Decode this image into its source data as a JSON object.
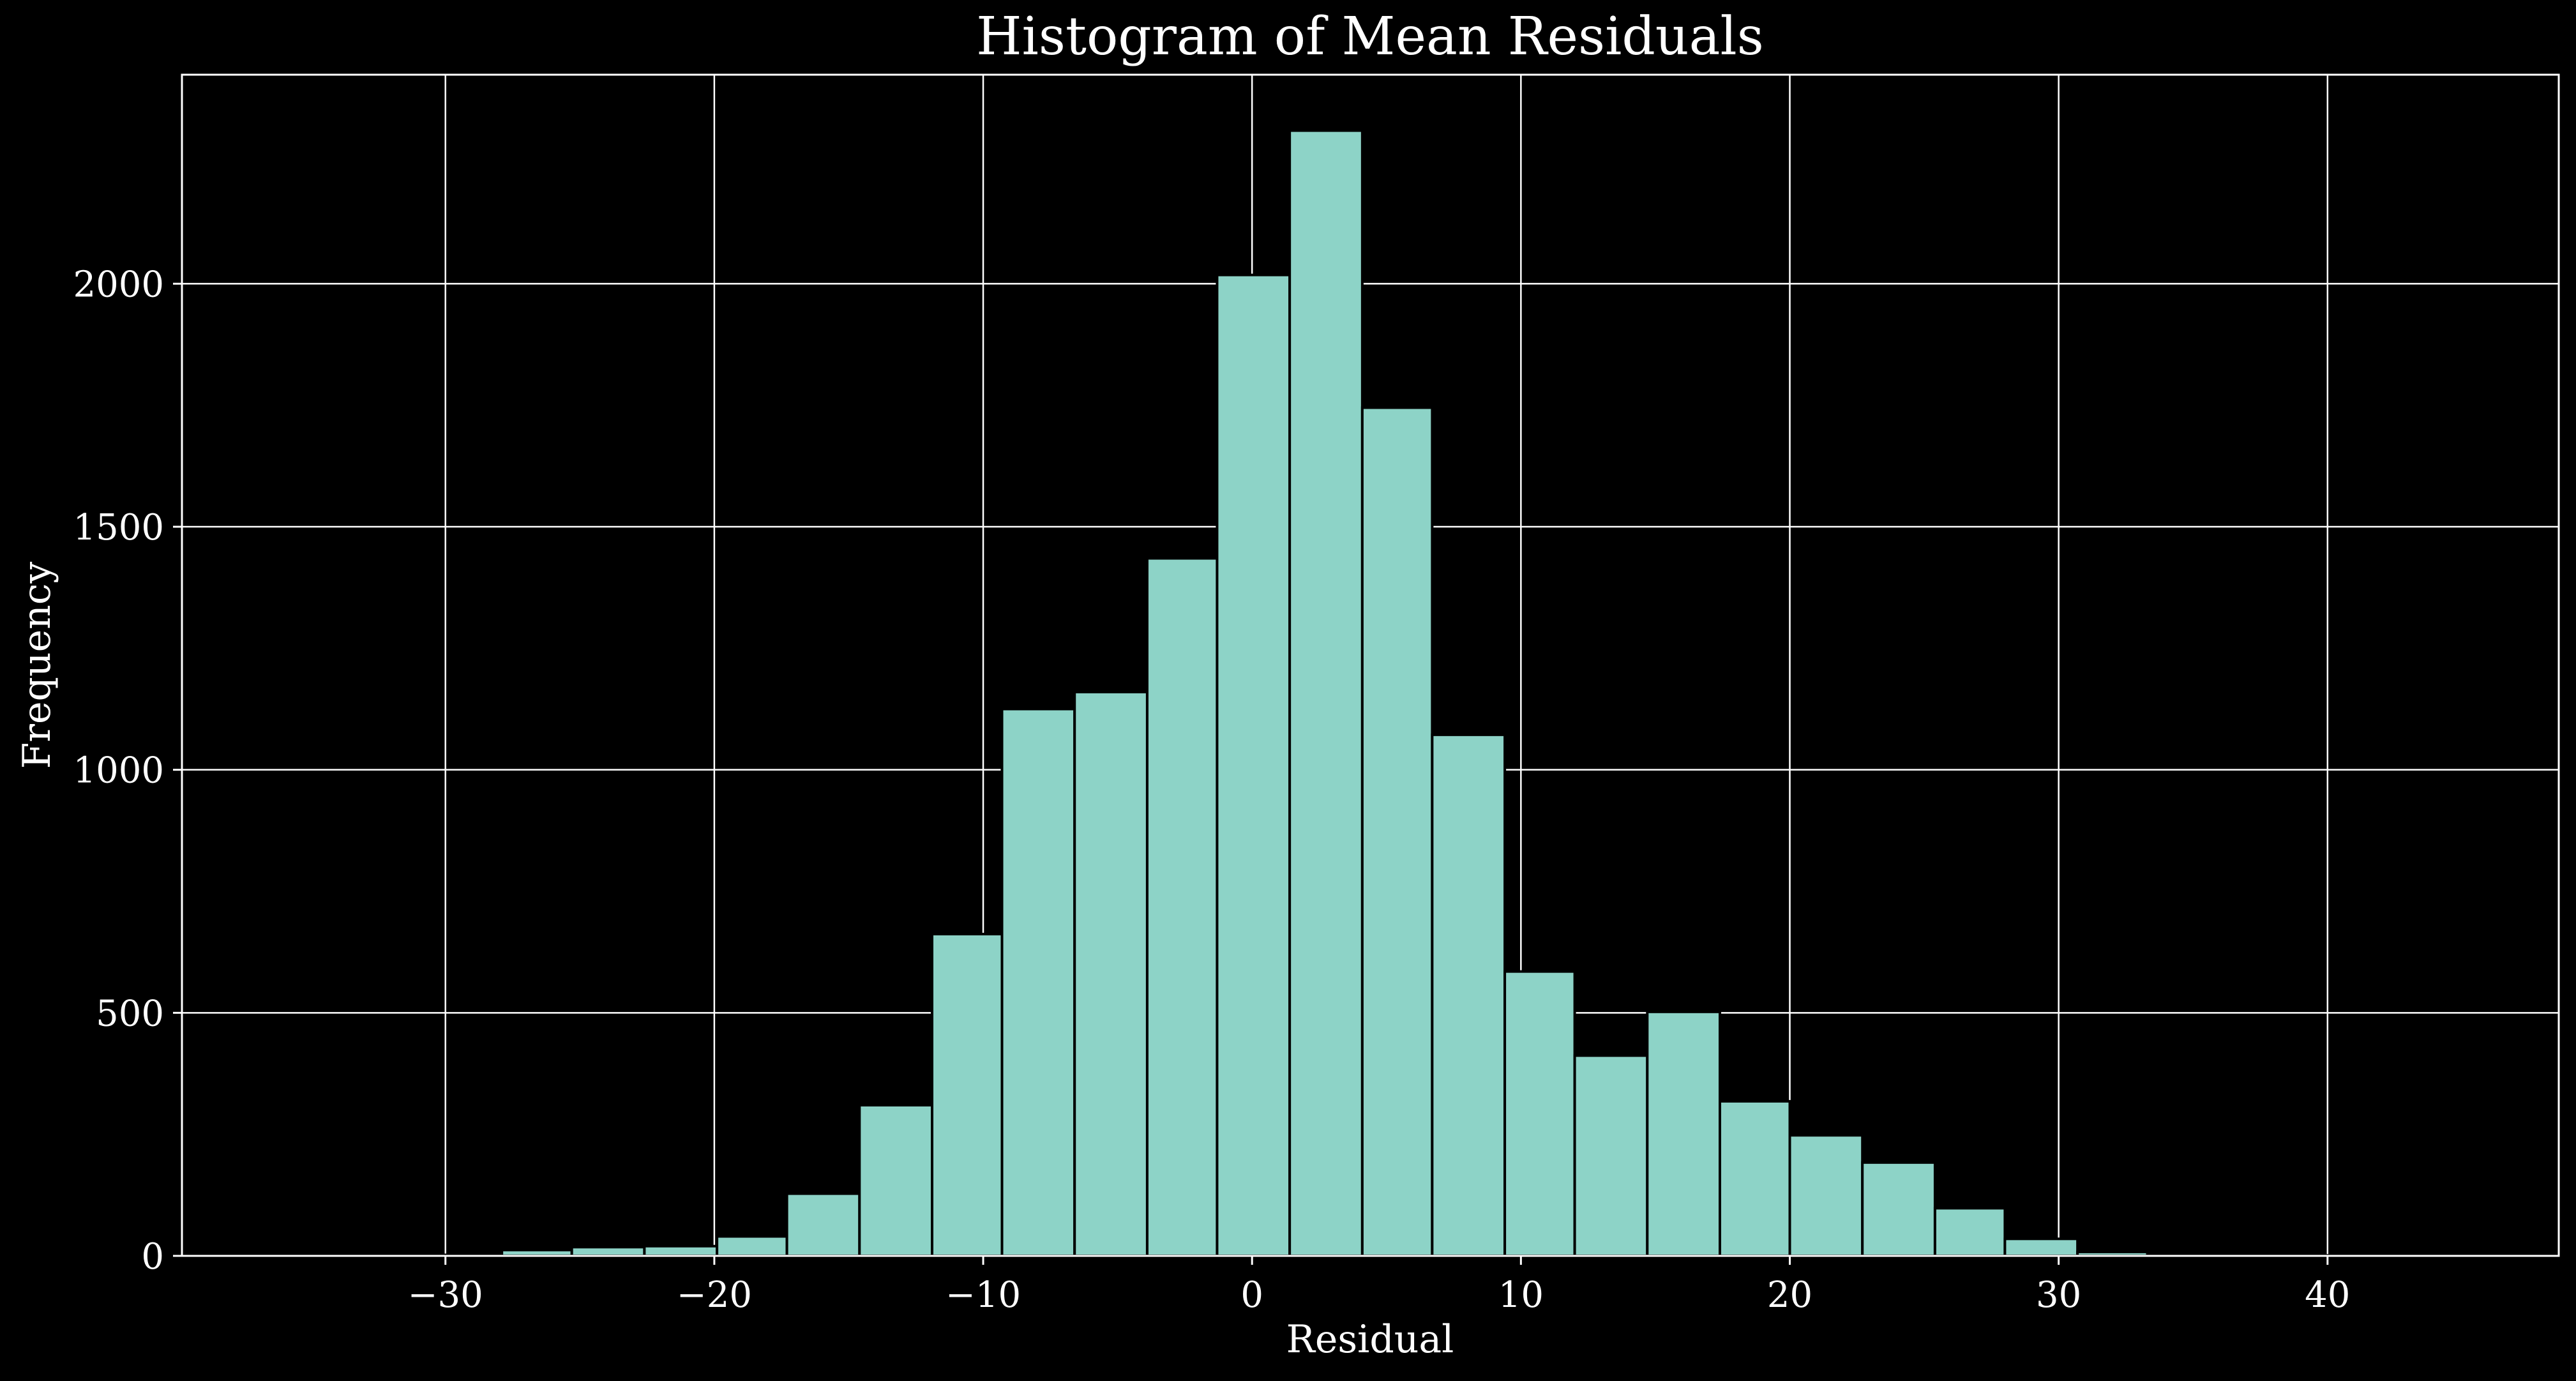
{
  "chart_data": {
    "type": "bar",
    "title": "Histogram of Mean Residuals",
    "xlabel": "Residual",
    "ylabel": "Frequency",
    "xlim": [
      -39.8,
      48.6
    ],
    "ylim": [
      0,
      2430
    ],
    "xticks": [
      -30,
      -20,
      -10,
      0,
      10,
      20,
      30,
      40
    ],
    "xtick_labels": [
      "−30",
      "−20",
      "−10",
      "0",
      "10",
      "20",
      "30",
      "40"
    ],
    "yticks": [
      0,
      500,
      1000,
      1500,
      2000
    ],
    "ytick_labels": [
      "0",
      "500",
      "1000",
      "1500",
      "2000"
    ],
    "grid": true,
    "bins": [
      {
        "x0": -35.9,
        "x1": -33.2,
        "count": 1
      },
      {
        "x0": -33.2,
        "x1": -30.6,
        "count": 1
      },
      {
        "x0": -30.6,
        "x1": -27.9,
        "count": 2
      },
      {
        "x0": -27.9,
        "x1": -25.3,
        "count": 12
      },
      {
        "x0": -25.3,
        "x1": -22.6,
        "count": 18
      },
      {
        "x0": -22.6,
        "x1": -19.9,
        "count": 20
      },
      {
        "x0": -19.9,
        "x1": -17.3,
        "count": 40
      },
      {
        "x0": -17.3,
        "x1": -14.6,
        "count": 128
      },
      {
        "x0": -14.6,
        "x1": -11.9,
        "count": 310
      },
      {
        "x0": -11.9,
        "x1": -9.3,
        "count": 662
      },
      {
        "x0": -9.3,
        "x1": -6.6,
        "count": 1125
      },
      {
        "x0": -6.6,
        "x1": -3.9,
        "count": 1160
      },
      {
        "x0": -3.9,
        "x1": -1.3,
        "count": 1435
      },
      {
        "x0": -1.3,
        "x1": 1.4,
        "count": 2018
      },
      {
        "x0": 1.4,
        "x1": 4.1,
        "count": 2315
      },
      {
        "x0": 4.1,
        "x1": 6.7,
        "count": 1745
      },
      {
        "x0": 6.7,
        "x1": 9.4,
        "count": 1072
      },
      {
        "x0": 9.4,
        "x1": 12.0,
        "count": 585
      },
      {
        "x0": 12.0,
        "x1": 14.7,
        "count": 412
      },
      {
        "x0": 14.7,
        "x1": 17.4,
        "count": 502
      },
      {
        "x0": 17.4,
        "x1": 20.0,
        "count": 318
      },
      {
        "x0": 20.0,
        "x1": 22.7,
        "count": 248
      },
      {
        "x0": 22.7,
        "x1": 25.4,
        "count": 192
      },
      {
        "x0": 25.4,
        "x1": 28.0,
        "count": 98
      },
      {
        "x0": 28.0,
        "x1": 30.7,
        "count": 35
      },
      {
        "x0": 30.7,
        "x1": 33.3,
        "count": 8
      },
      {
        "x0": 33.3,
        "x1": 36.0,
        "count": 5
      },
      {
        "x0": 36.0,
        "x1": 38.7,
        "count": 1
      },
      {
        "x0": 38.7,
        "x1": 41.3,
        "count": 1
      },
      {
        "x0": 41.3,
        "x1": 44.0,
        "count": 4
      }
    ],
    "colors": {
      "bar": "#8dd3c7",
      "bar_edge": "#000000",
      "background": "#000000",
      "grid": "#ffffff",
      "text": "#ffffff"
    }
  }
}
